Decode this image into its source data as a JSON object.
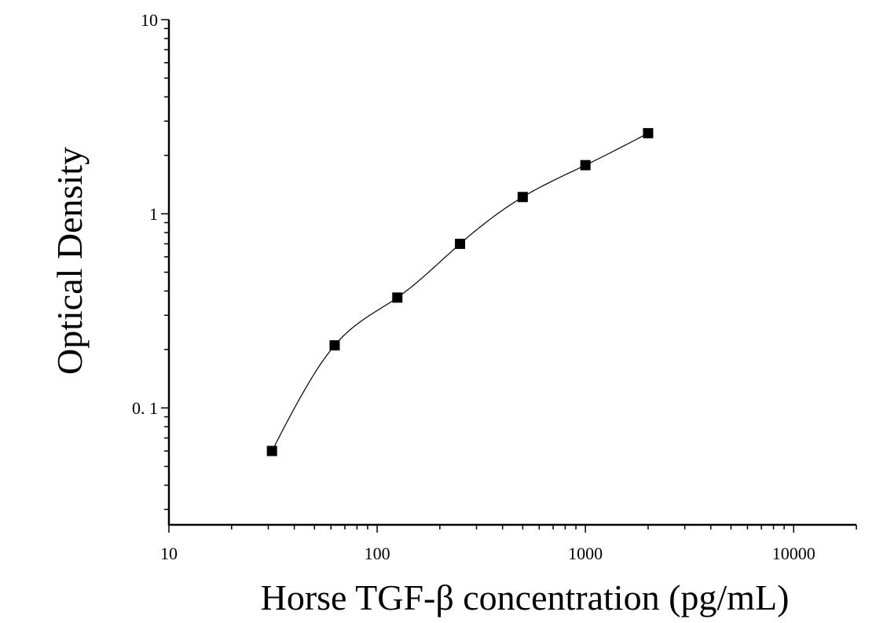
{
  "chart_data": {
    "type": "scatter",
    "xlabel": "Horse TGF-β concentration (pg/mL)",
    "ylabel": "Optical Density",
    "x_scale": "log",
    "y_scale": "log",
    "xlim": [
      10,
      20000
    ],
    "ylim": [
      0.025,
      10
    ],
    "x_ticks": [
      10,
      100,
      1000,
      10000
    ],
    "x_tick_labels": [
      "10",
      "100",
      "1000",
      "10000"
    ],
    "y_ticks": [
      0.1,
      1,
      10
    ],
    "y_tick_labels": [
      "0. 1",
      "1",
      "10"
    ],
    "grid": false,
    "series": [
      {
        "marker": "square",
        "fit_curve": true,
        "x": [
          31.25,
          62.5,
          125,
          250,
          500,
          1000,
          2000
        ],
        "y": [
          0.06,
          0.21,
          0.37,
          0.7,
          1.22,
          1.78,
          2.6
        ]
      }
    ],
    "colors": {
      "marker": "#000000",
      "curve": "#000000",
      "axis": "#000000"
    }
  }
}
